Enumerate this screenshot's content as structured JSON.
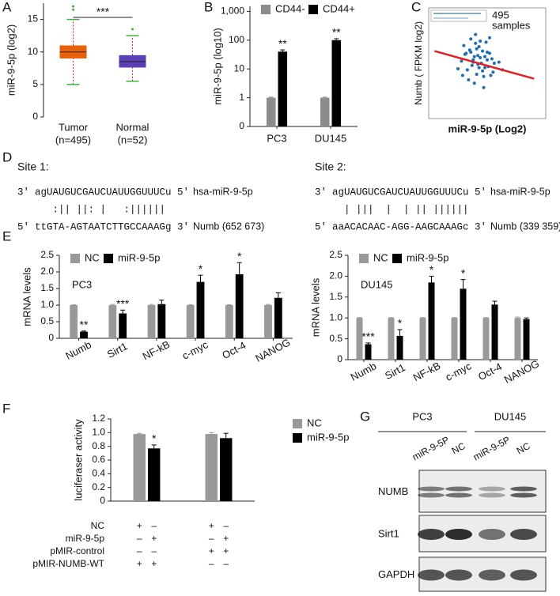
{
  "chart_data": [
    {
      "type": "box",
      "panel": "A",
      "ylabel": "miR-9-5p (log2)",
      "categories": [
        "Tumor",
        "Normal"
      ],
      "category_notes": [
        "(n=495)",
        "(n=52)"
      ],
      "boxes": [
        {
          "whisker_low": 5,
          "q1": 9,
          "median": 10,
          "q3": 11,
          "whisker_high": 15,
          "outliers": [
            16.5,
            17
          ],
          "color": "#e8600a"
        },
        {
          "whisker_low": 5.5,
          "q1": 7.6,
          "median": 8.5,
          "q3": 9.5,
          "whisker_high": 12.5,
          "outliers": [
            13.5
          ],
          "color": "#5a3fb5"
        }
      ],
      "significance": "***",
      "ylim": [
        0,
        17.5
      ],
      "yticks": [
        0,
        5,
        10,
        15
      ]
    },
    {
      "type": "bar",
      "panel": "B",
      "ylabel": "miR-9-5p (log10)",
      "log": true,
      "legend": "top",
      "categories": [
        "PC3",
        "DU145"
      ],
      "series": [
        {
          "name": "CD44-",
          "color": "#8c8c8c",
          "values": [
            1,
            1
          ],
          "errors": [
            0.05,
            0.05
          ]
        },
        {
          "name": "CD44+",
          "color": "#000000",
          "values": [
            40,
            100
          ],
          "errors": [
            6,
            12
          ],
          "significance": [
            "**",
            "**"
          ]
        }
      ],
      "ylim": [
        0.1,
        1500
      ],
      "yticks": [
        {
          "value": 0.1,
          "label": "0"
        },
        1,
        10,
        100,
        {
          "value": 1000,
          "label": "1,000"
        }
      ]
    },
    {
      "type": "scatter",
      "panel": "C",
      "xlabel": "miR-9-5p  (Log2)",
      "ylabel": "Numb ( FPKM log2)",
      "annotation_lines": [
        "495",
        "samples"
      ],
      "color": "#1f6db3",
      "trend_color": "#e02020",
      "x": [
        3.1,
        3.5,
        3.8,
        4.0,
        4.2,
        4.4,
        4.6,
        4.8,
        5.0,
        5.2,
        3.3,
        3.6,
        3.9,
        4.1,
        4.3,
        4.5,
        4.7,
        4.9,
        5.1,
        5.4,
        2.8,
        3.0,
        3.4,
        3.7,
        4.0,
        4.2,
        4.6,
        5.0,
        5.3,
        5.6,
        2.5,
        3.2,
        3.9,
        4.4,
        4.8,
        5.5,
        6.0,
        2.9,
        4.1,
        4.7,
        3.6,
        4.3,
        5.2,
        6.3,
        3.8
      ],
      "y": [
        5.8,
        6.2,
        5.1,
        6.8,
        4.9,
        5.5,
        6.1,
        4.6,
        5.3,
        5.9,
        4.4,
        7.2,
        5.6,
        4.0,
        6.5,
        5.0,
        3.8,
        6.9,
        4.7,
        5.4,
        5.2,
        6.6,
        3.5,
        4.8,
        7.6,
        5.7,
        4.3,
        6.0,
        3.9,
        5.0,
        4.5,
        5.9,
        3.2,
        7.0,
        5.6,
        4.2,
        5.1,
        3.9,
        6.3,
        2.8,
        6.0,
        4.6,
        7.3,
        4.4,
        5.3
      ],
      "trend": {
        "x": [
          0.5,
          9.0
        ],
        "y": [
          6.1,
          3.6
        ]
      },
      "xlim": [
        0,
        10
      ],
      "ylim": [
        0,
        10
      ]
    },
    {
      "type": "bar",
      "panel": "E",
      "ylabel": "mRNA levels",
      "note": "PC3",
      "legend": "top",
      "categories": [
        "Numb",
        "Sirt1",
        "NF-kB",
        "c-myc",
        "Oct-4",
        "NANOG"
      ],
      "series": [
        {
          "name": "NC",
          "color": "#999999",
          "values": [
            1,
            1,
            1,
            1,
            1,
            1
          ],
          "errors": [
            0.01,
            0.02,
            0.02,
            0.01,
            0.01,
            0.02
          ]
        },
        {
          "name": "miR-9-5p",
          "color": "#000000",
          "values": [
            0.2,
            0.75,
            1.03,
            1.7,
            1.93,
            1.22
          ],
          "errors": [
            0.02,
            0.1,
            0.12,
            0.2,
            0.35,
            0.15
          ],
          "significance": [
            "**",
            "***",
            null,
            "*",
            "*",
            null
          ]
        }
      ],
      "ylim": [
        0,
        2.5
      ],
      "yticks": [
        0,
        0.5,
        {
          "value": 1,
          "label": "1.0"
        },
        1.5,
        {
          "value": 2,
          "label": "2.0"
        },
        2.5
      ]
    },
    {
      "type": "bar",
      "ylabel": "mRNA levels",
      "note": "DU145",
      "legend": "top",
      "categories": [
        "Numb",
        "Sirt1",
        "NF-kB",
        "c-myc",
        "Oct-4",
        "NANOG"
      ],
      "series": [
        {
          "name": "NC",
          "color": "#999999",
          "values": [
            1,
            1,
            1,
            1,
            1,
            1
          ],
          "errors": [
            0.01,
            0.01,
            0.01,
            0.01,
            0.01,
            0.02
          ]
        },
        {
          "name": "miR-9-5p",
          "color": "#000000",
          "values": [
            0.37,
            0.57,
            1.85,
            1.7,
            1.32,
            0.97
          ],
          "errors": [
            0.03,
            0.15,
            0.15,
            0.22,
            0.08,
            0.03
          ],
          "significance": [
            "***",
            "*",
            "*",
            "*",
            null,
            null
          ]
        }
      ],
      "ylim": [
        0,
        2.5
      ],
      "yticks": [
        0,
        0.5,
        {
          "value": 1,
          "label": "1.0"
        },
        1.5,
        {
          "value": 2,
          "label": "2.0"
        },
        2.5
      ]
    },
    {
      "type": "bar",
      "panel": "F",
      "ylabel": "luciferaser activity",
      "legend": "right",
      "series": [
        {
          "name": "NC",
          "color": "#999999",
          "values": [
            0.98,
            0.98
          ],
          "errors": [
            0.01,
            0.02
          ]
        },
        {
          "name": "miR-9-5p",
          "color": "#000000",
          "values": [
            0.77,
            0.92
          ],
          "errors": [
            0.05,
            0.07
          ],
          "significance": [
            "*",
            null
          ]
        }
      ],
      "conditions": [
        {
          "label": "NC",
          "marks": [
            "+",
            "–",
            "+",
            "–"
          ]
        },
        {
          "label": "miR-9-5p",
          "marks": [
            "–",
            "+",
            "–",
            "+"
          ]
        },
        {
          "label": "pMIR-control",
          "marks": [
            "–",
            "–",
            "+",
            "+"
          ]
        },
        {
          "label": "pMIR-NUMB-WT",
          "marks": [
            "+",
            "+",
            "–",
            "–"
          ]
        }
      ],
      "ylim": [
        0,
        1.2
      ],
      "yticks": [
        0,
        0.2,
        0.4,
        0.6,
        0.8,
        {
          "value": 1,
          "label": "1.0"
        },
        1.2
      ]
    }
  ],
  "sequences": {
    "panel": "D",
    "sites": [
      {
        "title": "Site 1:",
        "mirna": {
          "left": "3'",
          "seq": "agUAUGUCGAUCUAUUGGUUUCu",
          "right": "5'",
          "name": "hsa-miR-9-5p"
        },
        "pairing": "   :|| ||: |   :||||||",
        "target": {
          "left": "5'",
          "seq": "ttGTA-AGTAATCTTGCCAAAGg",
          "right": "3'",
          "name": "Numb (652 673)"
        }
      },
      {
        "title": "Site 2:",
        "mirna": {
          "left": "3'",
          "seq": "agUAUGUCGAUCUAUUGGUUUCu",
          "right": "5'",
          "name": "hsa-miR-9-5p"
        },
        "pairing": "  | |||  |  | || ||||||",
        "target": {
          "left": "5'",
          "seq": "aaACACAAC-AGG-AAGCAAAGc",
          "right": "3'",
          "name": "Numb (339 359)"
        }
      }
    ]
  },
  "blot": {
    "panel": "G",
    "groups": [
      "PC3",
      "DU145"
    ],
    "lanes": [
      "miR-9-5P",
      "NC",
      "miR-9-5P",
      "NC"
    ],
    "rows": [
      "NUMB",
      "Sirt1",
      "GAPDH"
    ]
  }
}
